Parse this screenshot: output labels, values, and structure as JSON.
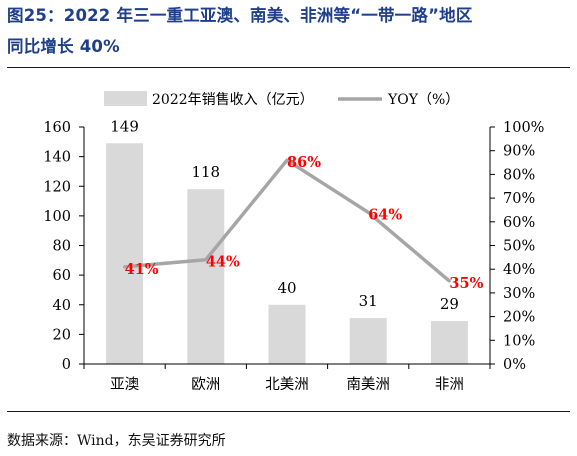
{
  "figure": {
    "title_line1": "图25：2022 年三一重工亚澳、南美、非洲等“一带一路”地区",
    "title_line2": "同比增长 40%",
    "source_label": "数据来源：",
    "source_text": "Wind，东吴证券研究所"
  },
  "colors": {
    "title": "#1f3f8a",
    "bar": "#d9d9d9",
    "line": "#a6a6a6",
    "yoy_label": "#ff0000"
  },
  "chart_data": {
    "type": "bar",
    "categories": [
      "亚澳",
      "欧洲",
      "北美洲",
      "南美洲",
      "非洲"
    ],
    "series": [
      {
        "name": "2022年销售收入（亿元）",
        "type": "bar",
        "axis": "left",
        "values": [
          149,
          118,
          40,
          31,
          29
        ],
        "labels": [
          "149",
          "118",
          "40",
          "31",
          "29"
        ]
      },
      {
        "name": "YOY（%）",
        "type": "line",
        "axis": "right",
        "values": [
          41,
          44,
          86,
          64,
          35
        ],
        "labels": [
          "41%",
          "44%",
          "86%",
          "64%",
          "35%"
        ]
      }
    ],
    "y_left": {
      "min": 0,
      "max": 160,
      "ticks": [
        "0",
        "20",
        "40",
        "60",
        "80",
        "100",
        "120",
        "140",
        "160"
      ]
    },
    "y_right": {
      "min": 0,
      "max": 100,
      "ticks": [
        "0%",
        "10%",
        "20%",
        "30%",
        "40%",
        "50%",
        "60%",
        "70%",
        "80%",
        "90%",
        "100%"
      ]
    },
    "legend_position": "top",
    "grid": false
  }
}
